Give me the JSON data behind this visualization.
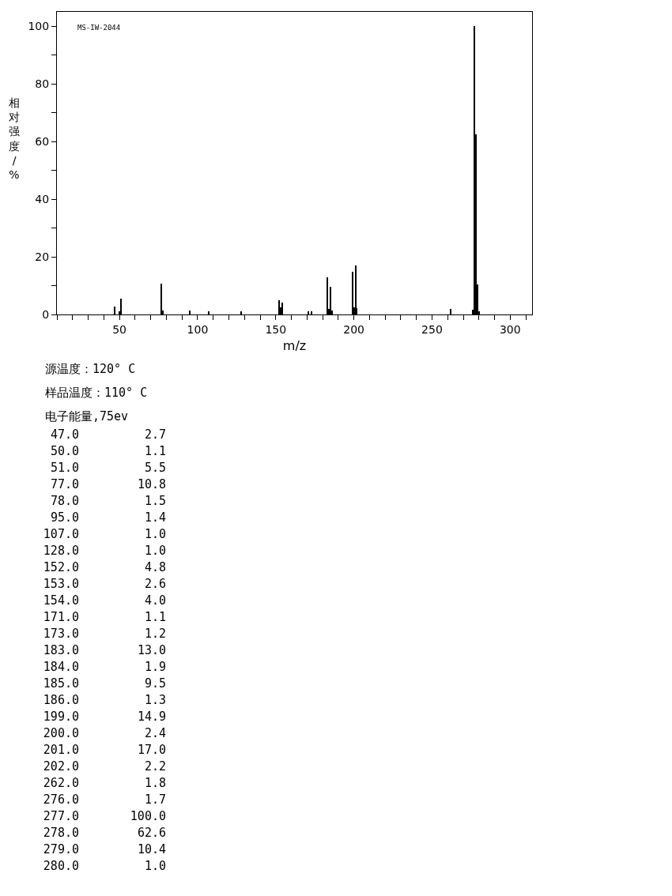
{
  "chart_data": [
    {
      "type": "bar",
      "xlabel": "m/z",
      "ylabel": "相对强度/%",
      "annotations": [
        "MS-IW-2044"
      ],
      "x": [
        47,
        50,
        51,
        77,
        78,
        95,
        107,
        128,
        152,
        153,
        154,
        171,
        173,
        183,
        184,
        185,
        186,
        199,
        200,
        201,
        202,
        262,
        276,
        277,
        278,
        279,
        280
      ],
      "values": [
        2.7,
        1.1,
        5.5,
        10.8,
        1.5,
        1.4,
        1.0,
        1.0,
        4.8,
        2.6,
        4.0,
        1.1,
        1.2,
        13.0,
        1.9,
        9.5,
        1.3,
        14.9,
        2.4,
        17.0,
        2.2,
        1.8,
        1.7,
        100.0,
        62.6,
        10.4,
        1.0
      ],
      "color": "#000000",
      "xlim": [
        10,
        314
      ],
      "xticks": [
        {
          "value": 10,
          "label": null
        },
        {
          "value": 20,
          "label": null
        },
        {
          "value": 30,
          "label": null
        },
        {
          "value": 40,
          "label": null
        },
        50,
        {
          "value": 60,
          "label": null
        },
        {
          "value": 70,
          "label": null
        },
        {
          "value": 80,
          "label": null
        },
        {
          "value": 90,
          "label": null
        },
        100,
        {
          "value": 110,
          "label": null
        },
        {
          "value": 120,
          "label": null
        },
        {
          "value": 130,
          "label": null
        },
        {
          "value": 140,
          "label": null
        },
        150,
        {
          "value": 160,
          "label": null
        },
        {
          "value": 170,
          "label": null
        },
        {
          "value": 180,
          "label": null
        },
        {
          "value": 190,
          "label": null
        },
        200,
        {
          "value": 210,
          "label": null
        },
        {
          "value": 220,
          "label": null
        },
        {
          "value": 230,
          "label": null
        },
        {
          "value": 240,
          "label": null
        },
        250,
        {
          "value": 260,
          "label": null
        },
        {
          "value": 270,
          "label": null
        },
        {
          "value": 280,
          "label": null
        },
        {
          "value": 290,
          "label": null
        },
        300,
        {
          "value": 310,
          "label": null
        }
      ],
      "ylim": [
        0,
        105
      ],
      "yticks": [
        0,
        {
          "value": 10,
          "label": null
        },
        20,
        {
          "value": 30,
          "label": null
        },
        40,
        {
          "value": 50,
          "label": null
        },
        60,
        {
          "value": 70,
          "label": null
        },
        80,
        {
          "value": 90,
          "label": null
        },
        100
      ]
    },
    {
      "type": "other",
      "annotations": [
        "源温度：120° C",
        "样品温度：110° C",
        "电子能量,75ev",
        "47.0",
        "2.7",
        "50.0",
        "1.1",
        "51.0",
        "5.5",
        "77.0",
        "10.8",
        "78.0",
        "1.5",
        "95.0",
        "1.4",
        "107.0",
        "1.0",
        "128.0",
        "1.0",
        "152.0",
        "4.8",
        "153.0",
        "2.6",
        "154.0",
        "4.0",
        "171.0",
        "1.1",
        "173.0",
        "1.2",
        "183.0",
        "13.0",
        "184.0",
        "1.9",
        "185.0",
        "9.5",
        "186.0",
        "1.3",
        "199.0",
        "14.9",
        "200.0",
        "2.4",
        "201.0",
        "17.0",
        "202.0",
        "2.2",
        "262.0",
        "1.8",
        "276.0",
        "1.7",
        "277.0",
        "100.0",
        "278.0",
        "62.6",
        "279.0",
        "10.4",
        "280.0",
        "1.0"
      ]
    }
  ]
}
